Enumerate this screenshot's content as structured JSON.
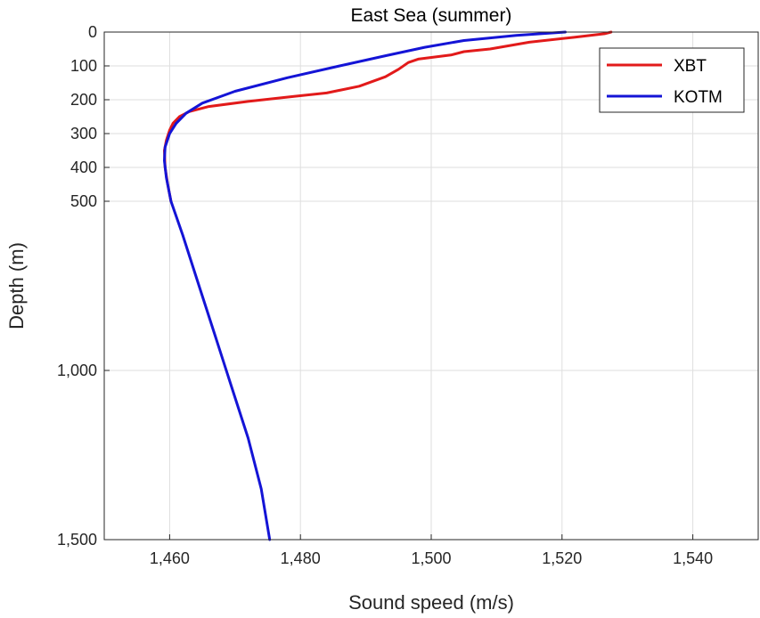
{
  "chart_data": {
    "type": "line",
    "title": "East Sea (summer)",
    "xlabel": "Sound speed (m/s)",
    "ylabel": "Depth (m)",
    "xlim": [
      1450,
      1550
    ],
    "ylim": [
      0,
      1500
    ],
    "y_reversed": true,
    "y_scale": "nonlinear: 0–500 m expanded, 500–1500 m compressed",
    "x_ticks": [
      1460,
      1480,
      1500,
      1520,
      1540
    ],
    "x_tick_labels": [
      "1,460",
      "1,480",
      "1,500",
      "1,520",
      "1,540"
    ],
    "y_ticks": [
      0,
      100,
      200,
      300,
      400,
      500,
      1000,
      1500
    ],
    "y_tick_labels": [
      "0",
      "100",
      "200",
      "300",
      "400",
      "500",
      "1,000",
      "1,500"
    ],
    "grid": true,
    "legend_position": "top-right",
    "series": [
      {
        "name": "XBT",
        "color": "#e21a1a",
        "points": [
          {
            "x": 1527.5,
            "y": 0
          },
          {
            "x": 1526.5,
            "y": 5
          },
          {
            "x": 1522,
            "y": 15
          },
          {
            "x": 1515,
            "y": 30
          },
          {
            "x": 1509,
            "y": 50
          },
          {
            "x": 1505,
            "y": 58
          },
          {
            "x": 1503,
            "y": 68
          },
          {
            "x": 1498,
            "y": 80
          },
          {
            "x": 1496.5,
            "y": 90
          },
          {
            "x": 1495,
            "y": 110
          },
          {
            "x": 1493,
            "y": 132
          },
          {
            "x": 1489,
            "y": 160
          },
          {
            "x": 1484,
            "y": 180
          },
          {
            "x": 1479,
            "y": 190
          },
          {
            "x": 1472,
            "y": 205
          },
          {
            "x": 1466,
            "y": 220
          },
          {
            "x": 1463,
            "y": 235
          },
          {
            "x": 1461.5,
            "y": 250
          },
          {
            "x": 1460.5,
            "y": 270
          },
          {
            "x": 1460,
            "y": 290
          },
          {
            "x": 1459.5,
            "y": 320
          },
          {
            "x": 1459.2,
            "y": 350
          },
          {
            "x": 1459.3,
            "y": 400
          },
          {
            "x": 1459.7,
            "y": 450
          },
          {
            "x": 1460.2,
            "y": 500
          }
        ]
      },
      {
        "name": "KOTM",
        "color": "#1414d6",
        "points": [
          {
            "x": 1520.5,
            "y": 0
          },
          {
            "x": 1513,
            "y": 10
          },
          {
            "x": 1505,
            "y": 25
          },
          {
            "x": 1499,
            "y": 45
          },
          {
            "x": 1493,
            "y": 70
          },
          {
            "x": 1486,
            "y": 100
          },
          {
            "x": 1478,
            "y": 135
          },
          {
            "x": 1470,
            "y": 175
          },
          {
            "x": 1465,
            "y": 210
          },
          {
            "x": 1462.5,
            "y": 240
          },
          {
            "x": 1461,
            "y": 270
          },
          {
            "x": 1460,
            "y": 300
          },
          {
            "x": 1459.3,
            "y": 340
          },
          {
            "x": 1459.2,
            "y": 380
          },
          {
            "x": 1459.5,
            "y": 430
          },
          {
            "x": 1460.2,
            "y": 500
          },
          {
            "x": 1462,
            "y": 600
          },
          {
            "x": 1464.5,
            "y": 750
          },
          {
            "x": 1467,
            "y": 900
          },
          {
            "x": 1469.5,
            "y": 1050
          },
          {
            "x": 1472,
            "y": 1200
          },
          {
            "x": 1474,
            "y": 1350
          },
          {
            "x": 1475.3,
            "y": 1500
          }
        ]
      }
    ]
  }
}
